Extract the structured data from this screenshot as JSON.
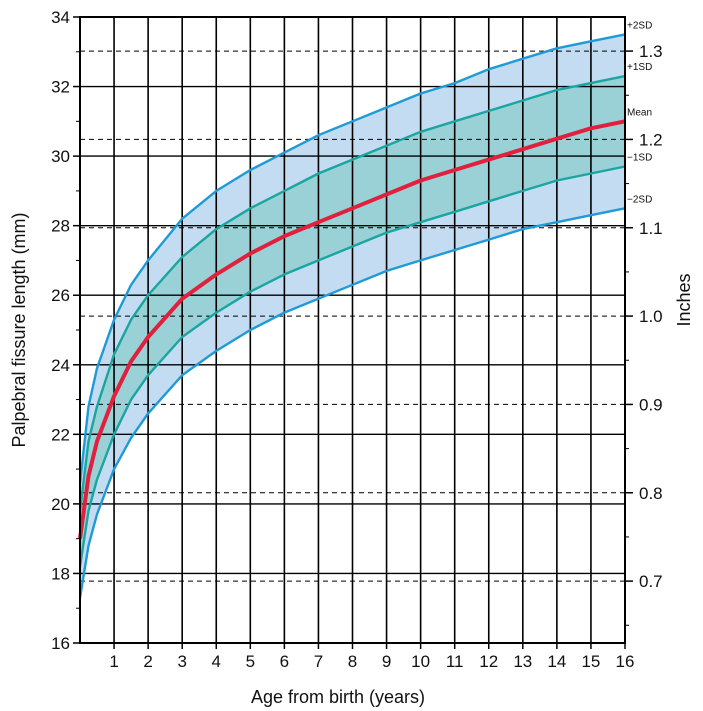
{
  "chart_data": {
    "type": "area",
    "xlabel": "Age from birth (years)",
    "ylabel": "Palpebral fissure length (mm)",
    "ylabel_right": "Inches",
    "xlim": [
      0,
      16
    ],
    "ylim": [
      16,
      34
    ],
    "x_ticks": [
      1,
      2,
      3,
      4,
      5,
      6,
      7,
      8,
      9,
      10,
      11,
      12,
      13,
      14,
      15,
      16
    ],
    "y_ticks": [
      16,
      18,
      20,
      22,
      24,
      26,
      28,
      30,
      32,
      34
    ],
    "right_ticks_in": [
      0.7,
      0.8,
      0.9,
      1.0,
      1.1,
      1.2,
      1.3
    ],
    "right_tick_labels": [
      "0.7",
      "0.8",
      "0.9",
      "1.0",
      "1.1",
      "1.2",
      "1.3"
    ],
    "grid": true,
    "x": [
      0,
      0.25,
      0.5,
      1,
      1.5,
      2,
      3,
      4,
      5,
      6,
      7,
      8,
      9,
      10,
      11,
      12,
      13,
      14,
      15,
      16
    ],
    "series": [
      {
        "name": "+2SD",
        "color": "#1e9bd7",
        "values": [
          20.6,
          22.8,
          23.9,
          25.3,
          26.3,
          27.0,
          28.2,
          29.0,
          29.6,
          30.1,
          30.6,
          31.0,
          31.4,
          31.8,
          32.1,
          32.5,
          32.8,
          33.1,
          33.3,
          33.5
        ]
      },
      {
        "name": "+1SD",
        "color": "#1aa5a0",
        "values": [
          19.8,
          21.8,
          22.8,
          24.3,
          25.3,
          26.0,
          27.1,
          27.9,
          28.5,
          29.0,
          29.5,
          29.9,
          30.3,
          30.7,
          31.0,
          31.3,
          31.6,
          31.9,
          32.1,
          32.3
        ]
      },
      {
        "name": "Mean",
        "color": "#e0203c",
        "values": [
          19.0,
          20.8,
          21.8,
          23.1,
          24.1,
          24.8,
          25.9,
          26.6,
          27.2,
          27.7,
          28.1,
          28.5,
          28.9,
          29.3,
          29.6,
          29.9,
          30.2,
          30.5,
          30.8,
          31.0
        ]
      },
      {
        "name": "−1SD",
        "color": "#1aa5a0",
        "values": [
          18.2,
          19.8,
          20.7,
          22.0,
          23.0,
          23.7,
          24.8,
          25.5,
          26.1,
          26.6,
          27.0,
          27.4,
          27.8,
          28.1,
          28.4,
          28.7,
          29.0,
          29.3,
          29.5,
          29.7
        ]
      },
      {
        "name": "−2SD",
        "color": "#1e9bd7",
        "values": [
          17.3,
          18.8,
          19.7,
          21.0,
          21.9,
          22.6,
          23.7,
          24.4,
          25.0,
          25.5,
          25.9,
          26.3,
          26.7,
          27.0,
          27.3,
          27.6,
          27.9,
          28.1,
          28.3,
          28.5
        ]
      }
    ],
    "fills": {
      "outer_band": "#c3dcf2",
      "inner_band": "#99d1d6"
    }
  }
}
